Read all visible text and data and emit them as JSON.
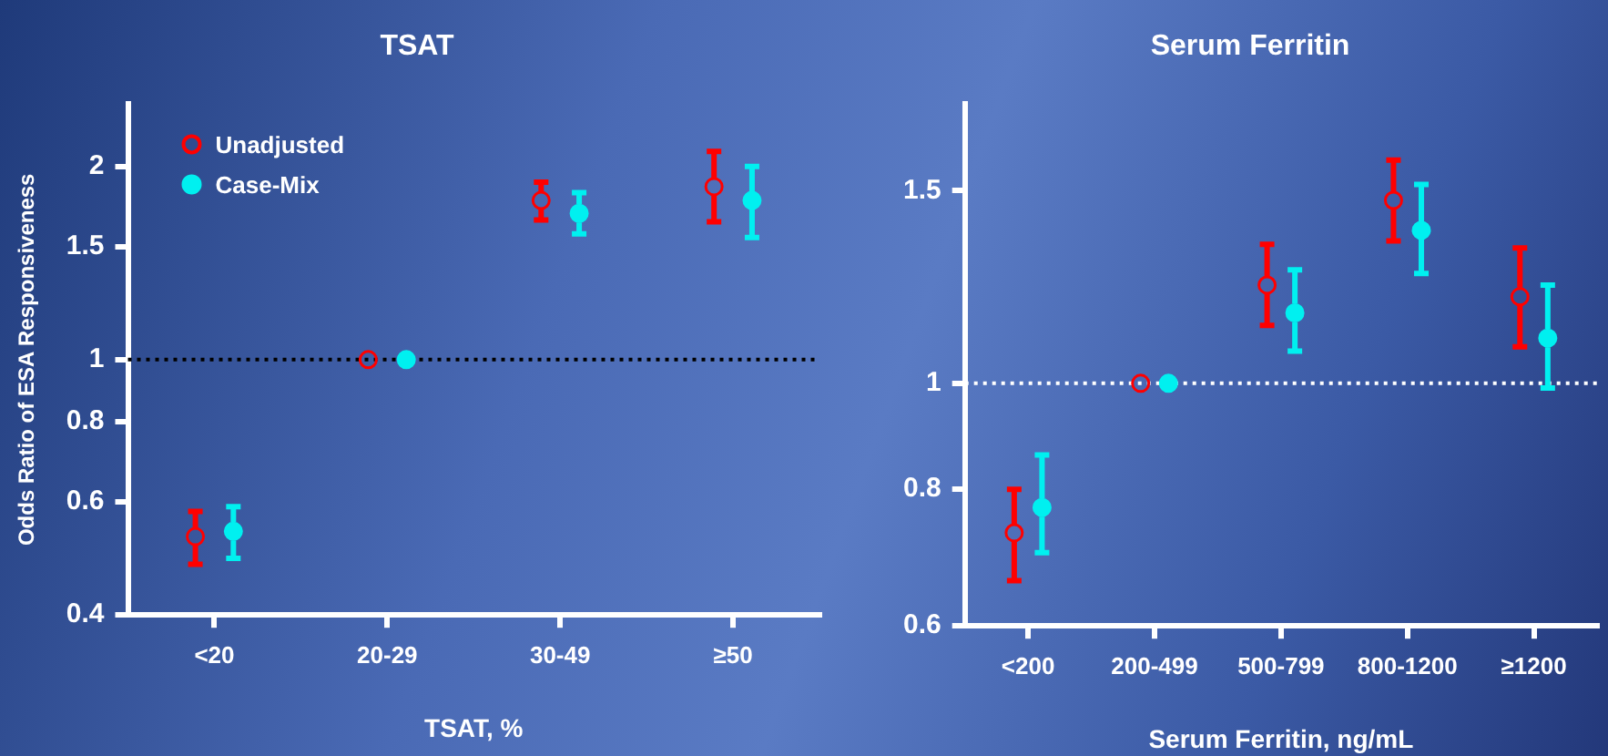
{
  "chart_data": [
    {
      "type": "scatter",
      "title": "TSAT",
      "xlabel": "TSAT, %",
      "ylabel": "Odds Ratio of ESA Responsiveness",
      "categories": [
        "<20",
        "20-29",
        "30-49",
        "≥50"
      ],
      "series": [
        {
          "name": "Unadjusted",
          "color": "#ff0000",
          "values": [
            0.53,
            1,
            1.77,
            1.86
          ],
          "errors": [
            [
              0.48,
              0.58
            ],
            null,
            [
              1.65,
              1.89
            ],
            [
              1.64,
              2.11
            ]
          ]
        },
        {
          "name": "Case-Mix",
          "color": "#00f0f0",
          "values": [
            0.54,
            1,
            1.69,
            1.77
          ],
          "errors": [
            [
              0.49,
              0.59
            ],
            null,
            [
              1.57,
              1.82
            ],
            [
              1.55,
              2.0
            ]
          ]
        }
      ],
      "log": "y",
      "ylim": [
        0.4,
        2.5
      ],
      "yticks": [
        0.4,
        0.6,
        0.8,
        1,
        1.5,
        2
      ],
      "grid": false,
      "legend": "top left",
      "marker": "circle",
      "ref_lines": [
        {
          "axis": "y",
          "value": 1,
          "color": "#000000",
          "line_style": "dotted"
        }
      ]
    },
    {
      "type": "scatter",
      "title": "Serum Ferritin",
      "xlabel": "Serum Ferritin, ng/mL",
      "categories": [
        "<200",
        "200-499",
        "500-799",
        "800-1200",
        "≥1200"
      ],
      "series": [
        {
          "color": "#ff0000",
          "values": [
            0.73,
            1,
            1.23,
            1.47,
            1.2
          ],
          "errors": [
            [
              0.66,
              0.8
            ],
            null,
            [
              1.13,
              1.34
            ],
            [
              1.35,
              1.6
            ],
            [
              1.08,
              1.33
            ]
          ]
        },
        {
          "color": "#00f0f0",
          "values": [
            0.77,
            1,
            1.16,
            1.38,
            1.1
          ],
          "errors": [
            [
              0.7,
              0.86
            ],
            null,
            [
              1.07,
              1.27
            ],
            [
              1.26,
              1.52
            ],
            [
              0.99,
              1.23
            ]
          ]
        }
      ],
      "log": "y",
      "ylim": [
        0.6,
        1.8
      ],
      "yticks": [
        0.6,
        0.8,
        1,
        1.5
      ],
      "grid": false,
      "legend": false,
      "marker": "circle",
      "ref_lines": [
        {
          "axis": "y",
          "value": 1,
          "color": "#ffffff",
          "line_style": "dotted"
        }
      ]
    }
  ]
}
